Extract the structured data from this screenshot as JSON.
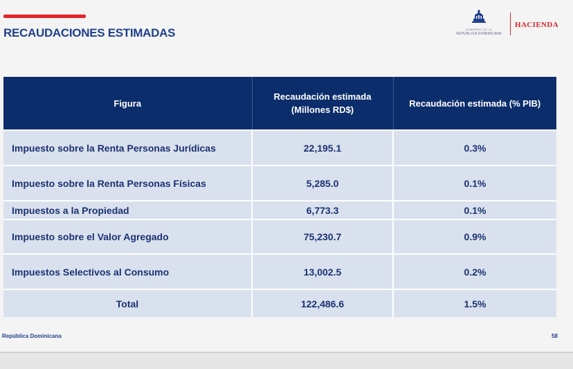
{
  "header": {
    "title": "RECAUDACIONES ESTIMADAS",
    "accent_color": "#e32427",
    "logo": {
      "icon": "dominican-republic-crest-icon",
      "gov_line1": "GOBIERNO DE LA",
      "gov_line2": "REPÚBLICA DOMINICANA",
      "brand": "HACIENDA"
    }
  },
  "table": {
    "header_color": "#0b2d6b",
    "row_color": "#d9e1ee",
    "columns": [
      "Figura",
      "Recaudación estimada (Millones RD$)",
      "Recaudación estimada (% PIB)"
    ],
    "rows": [
      {
        "figura": "Impuesto sobre la Renta Personas Jurídicas",
        "millones": "22,195.1",
        "pib": "0.3%"
      },
      {
        "figura": "Impuesto sobre la Renta Personas Físicas",
        "millones": "5,285.0",
        "pib": "0.1%"
      },
      {
        "figura": "Impuestos a la Propiedad",
        "millones": "6,773.3",
        "pib": "0.1%"
      },
      {
        "figura": "Impuesto sobre el Valor Agregado",
        "millones": "75,230.7",
        "pib": "0.9%"
      },
      {
        "figura": "Impuestos Selectivos al Consumo",
        "millones": "13,002.5",
        "pib": "0.2%"
      }
    ],
    "total": {
      "figura": "Total",
      "millones": "122,486.6",
      "pib": "1.5%"
    }
  },
  "footer": {
    "left": "República Dominicana",
    "page_number": "58"
  }
}
